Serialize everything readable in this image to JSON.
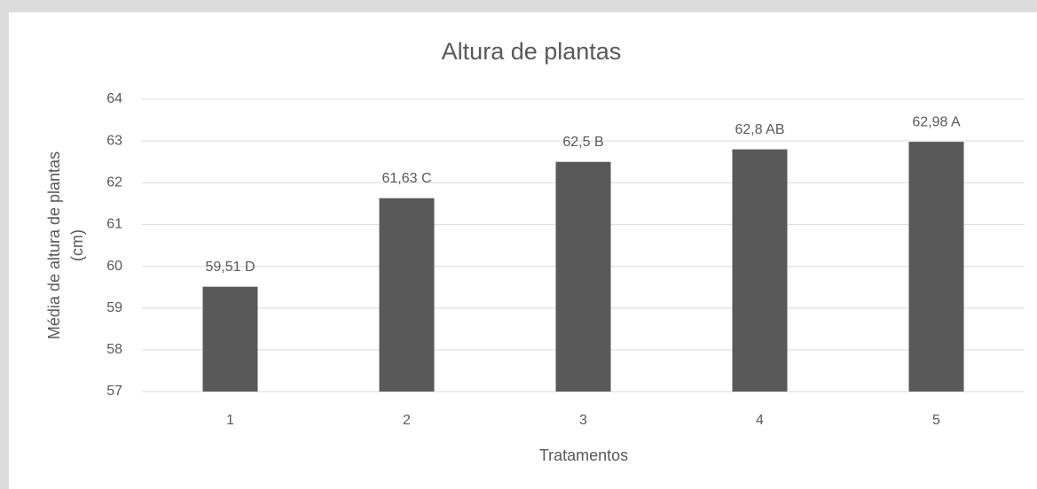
{
  "chart_data": {
    "type": "bar",
    "title": "Altura de plantas",
    "y_label": [
      "Média de altura de plantas",
      "(cm)"
    ],
    "x_label": "Tratamentos",
    "categories": [
      "1",
      "2",
      "3",
      "4",
      "5"
    ],
    "values": [
      59.51,
      61.63,
      62.5,
      62.8,
      62.98
    ],
    "value_labels": [
      "59,51 D",
      "61,63 C",
      "62,5 B",
      "62,8 AB",
      "62,98 A"
    ],
    "color": "#595959",
    "ylim": [
      57,
      64
    ],
    "yticks": [
      57,
      58,
      59,
      60,
      61,
      62,
      63,
      64
    ],
    "grid": true
  }
}
